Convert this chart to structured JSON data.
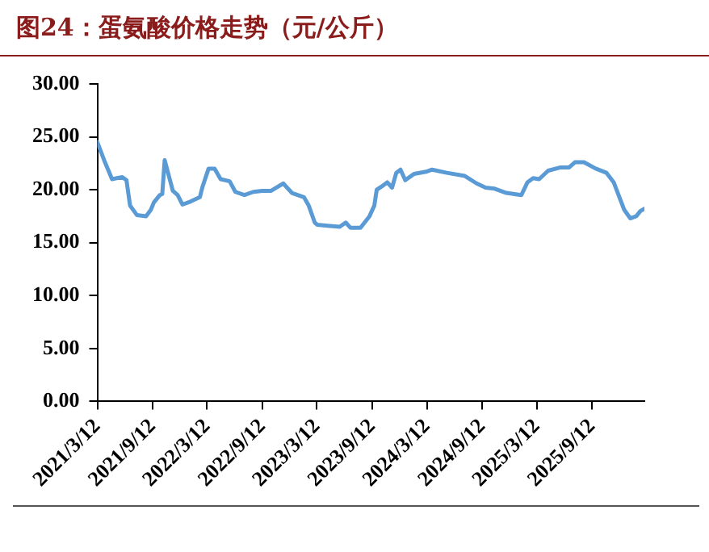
{
  "chart_data": {
    "type": "line",
    "title": "图24：蛋氨酸价格走势（元/公斤）",
    "x": [
      "2021-03-12",
      "2021-04-05",
      "2021-04-30",
      "2021-06-03",
      "2021-06-17",
      "2021-06-29",
      "2021-07-22",
      "2021-08-21",
      "2021-09-06",
      "2021-09-16",
      "2021-10-06",
      "2021-10-14",
      "2021-10-22",
      "2021-11-05",
      "2021-11-18",
      "2021-12-04",
      "2021-12-20",
      "2022-01-17",
      "2022-02-16",
      "2022-02-25",
      "2022-03-17",
      "2022-04-06",
      "2022-04-26",
      "2022-05-26",
      "2022-06-14",
      "2022-07-14",
      "2022-08-13",
      "2022-09-11",
      "2022-10-11",
      "2022-11-20",
      "2022-12-19",
      "2023-01-28",
      "2023-02-13",
      "2023-03-05",
      "2023-03-13",
      "2023-04-17",
      "2023-05-27",
      "2023-06-16",
      "2023-07-02",
      "2023-08-04",
      "2023-09-03",
      "2023-09-19",
      "2023-09-27",
      "2023-10-13",
      "2023-11-01",
      "2023-11-17",
      "2023-12-01",
      "2023-12-15",
      "2023-12-31",
      "2024-01-29",
      "2024-03-09",
      "2024-03-29",
      "2024-05-17",
      "2024-07-16",
      "2024-08-24",
      "2024-09-23",
      "2024-10-23",
      "2024-12-01",
      "2025-01-20",
      "2025-02-09",
      "2025-02-28",
      "2025-03-20",
      "2025-04-19",
      "2025-05-28",
      "2025-06-27",
      "2025-07-17",
      "2025-08-16",
      "2025-09-24",
      "2025-10-30",
      "2025-11-23",
      "2025-12-09",
      "2025-12-28",
      "2026-01-17",
      "2026-02-06",
      "2026-02-20",
      "2026-03-05"
    ],
    "series": [
      {
        "color": "#5b9bd5",
        "values": [
          24.5,
          22.7,
          21.0,
          21.2,
          20.9,
          18.5,
          17.6,
          17.5,
          18.1,
          18.8,
          19.5,
          19.6,
          22.8,
          21.3,
          19.9,
          19.5,
          18.6,
          18.9,
          19.3,
          20.3,
          22.0,
          22.0,
          21.0,
          20.8,
          19.8,
          19.5,
          19.8,
          19.9,
          19.9,
          20.6,
          19.7,
          19.3,
          18.5,
          16.9,
          16.7,
          16.6,
          16.5,
          16.9,
          16.4,
          16.4,
          17.5,
          18.5,
          20.0,
          20.3,
          20.7,
          20.2,
          21.6,
          21.9,
          20.9,
          21.5,
          21.7,
          21.9,
          21.6,
          21.3,
          20.6,
          20.2,
          20.1,
          19.7,
          19.5,
          20.7,
          21.1,
          21.0,
          21.8,
          22.1,
          22.1,
          22.6,
          22.6,
          22.0,
          21.6,
          20.7,
          19.5,
          18.1,
          17.3,
          17.5,
          18.0,
          18.2
        ]
      }
    ],
    "xlim": [
      "2021-03-12",
      "2026-03-05"
    ],
    "xticks": [
      {
        "value": "2021-03-12",
        "label": "2021/3/12"
      },
      {
        "value": "2021-09-12",
        "label": "2021/9/12"
      },
      {
        "value": "2022-03-12",
        "label": "2022/3/12"
      },
      {
        "value": "2022-09-12",
        "label": "2022/9/12"
      },
      {
        "value": "2023-03-12",
        "label": "2023/3/12"
      },
      {
        "value": "2023-09-12",
        "label": "2023/9/12"
      },
      {
        "value": "2024-03-12",
        "label": "2024/3/12"
      },
      {
        "value": "2024-09-12",
        "label": "2024/9/12"
      },
      {
        "value": "2025-03-12",
        "label": "2025/3/12"
      },
      {
        "value": "2025-09-12",
        "label": "2025/9/12"
      }
    ],
    "ylim": [
      0,
      30
    ],
    "yticks": [
      {
        "value": 0,
        "label": "0.00"
      },
      {
        "value": 5,
        "label": "5.00"
      },
      {
        "value": 10,
        "label": "10.00"
      },
      {
        "value": 15,
        "label": "15.00"
      },
      {
        "value": 20,
        "label": "20.00"
      },
      {
        "value": 25,
        "label": "25.00"
      },
      {
        "value": 30,
        "label": "30.00"
      }
    ],
    "grid": false,
    "legend": false,
    "marker": "none",
    "line_style": "solid"
  }
}
